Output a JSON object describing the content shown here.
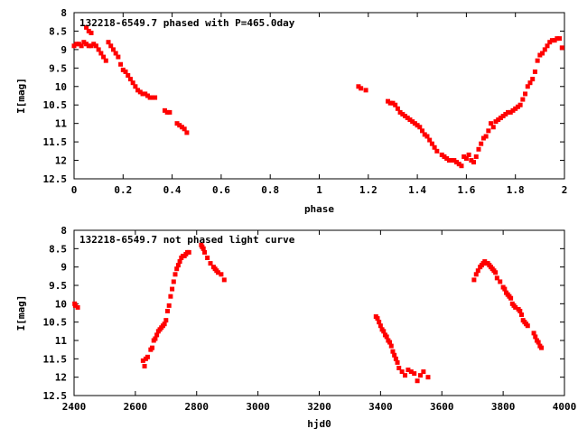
{
  "chart_data": [
    {
      "type": "scatter",
      "title": "132218-6549.7 phased with P=465.0day",
      "xlabel": "phase",
      "ylabel": "I[mag]",
      "xlim": [
        0,
        2
      ],
      "ylim": [
        12.5,
        8
      ],
      "y_inverted": true,
      "x_ticks": [
        "0",
        "0.2",
        "0.4",
        "0.6",
        "0.8",
        "1",
        "1.2",
        "1.4",
        "1.6",
        "1.8",
        "2"
      ],
      "x_tick_values": [
        0,
        0.2,
        0.4,
        0.6,
        0.8,
        1.0,
        1.2,
        1.4,
        1.6,
        1.8,
        2.0
      ],
      "y_ticks": [
        "8",
        "8.5",
        "9",
        "9.5",
        "10",
        "10.5",
        "11",
        "11.5",
        "12",
        "12.5"
      ],
      "y_tick_values": [
        8,
        8.5,
        9,
        9.5,
        10,
        10.5,
        11,
        11.5,
        12,
        12.5
      ],
      "grid": false,
      "marker_color": "#ff0000",
      "series": [
        {
          "x": [
            0.0,
            0.01,
            0.02,
            0.03,
            0.04,
            0.05,
            0.06,
            0.07,
            0.08,
            0.09,
            0.1,
            0.11,
            0.12,
            0.13,
            0.05,
            0.06,
            0.07,
            0.14,
            0.15,
            0.16,
            0.17,
            0.18,
            0.19,
            0.2,
            0.21,
            0.22,
            0.23,
            0.24,
            0.25,
            0.26,
            0.27,
            0.28,
            0.29,
            0.3,
            0.31,
            0.32,
            0.33,
            0.37,
            0.38,
            0.39,
            0.42,
            0.43,
            0.44,
            0.45,
            0.46,
            1.16,
            1.17,
            1.19,
            1.28,
            1.29,
            1.3,
            1.31,
            1.32,
            1.33,
            1.34,
            1.35,
            1.36,
            1.37,
            1.38,
            1.39,
            1.4,
            1.41,
            1.42,
            1.43,
            1.44,
            1.45,
            1.46,
            1.47,
            1.48,
            1.5,
            1.51,
            1.52,
            1.53,
            1.54,
            1.55,
            1.56,
            1.57,
            1.58,
            1.59,
            1.6,
            1.61,
            1.62,
            1.63,
            1.64,
            1.65,
            1.66,
            1.67,
            1.68,
            1.69,
            1.7,
            1.71,
            1.72,
            1.73,
            1.74,
            1.75,
            1.76,
            1.77,
            1.78,
            1.79,
            1.8,
            1.81,
            1.82,
            1.83,
            1.84,
            1.85,
            1.86,
            1.87,
            1.88,
            1.89,
            1.9,
            1.91,
            1.92,
            1.93,
            1.94,
            1.95,
            1.96,
            1.97,
            1.98,
            1.99
          ],
          "y": [
            8.9,
            8.85,
            8.85,
            8.9,
            8.8,
            8.85,
            8.9,
            8.9,
            8.85,
            8.9,
            9.0,
            9.1,
            9.2,
            9.3,
            8.4,
            8.5,
            8.55,
            8.8,
            8.9,
            9.0,
            9.1,
            9.2,
            9.4,
            9.55,
            9.6,
            9.7,
            9.8,
            9.9,
            10.0,
            10.1,
            10.15,
            10.2,
            10.2,
            10.25,
            10.3,
            10.3,
            10.3,
            10.65,
            10.7,
            10.7,
            11.0,
            11.05,
            11.1,
            11.15,
            11.25,
            10.0,
            10.05,
            10.1,
            10.4,
            10.45,
            10.45,
            10.5,
            10.6,
            10.7,
            10.75,
            10.8,
            10.85,
            10.9,
            10.95,
            11.0,
            11.05,
            11.1,
            11.2,
            11.3,
            11.35,
            11.45,
            11.55,
            11.65,
            11.75,
            11.85,
            11.9,
            11.95,
            12.0,
            12.0,
            12.0,
            12.05,
            12.1,
            12.15,
            11.9,
            11.95,
            11.85,
            12.0,
            12.05,
            11.9,
            11.7,
            11.55,
            11.4,
            11.35,
            11.2,
            11.0,
            11.1,
            10.95,
            10.9,
            10.85,
            10.8,
            10.75,
            10.7,
            10.7,
            10.65,
            10.6,
            10.55,
            10.5,
            10.35,
            10.2,
            10.0,
            9.9,
            9.8,
            9.6,
            9.3,
            9.15,
            9.1,
            9.0,
            8.9,
            8.8,
            8.75,
            8.75,
            8.7,
            8.7,
            8.95
          ]
        }
      ]
    },
    {
      "type": "scatter",
      "title": "132218-6549.7 not phased light curve",
      "xlabel": "hjd0",
      "ylabel": "I[mag]",
      "xlim": [
        2400,
        4000
      ],
      "ylim": [
        12.5,
        8
      ],
      "y_inverted": true,
      "x_ticks": [
        "2400",
        "2600",
        "2800",
        "3000",
        "3200",
        "3400",
        "3600",
        "3800",
        "4000"
      ],
      "x_tick_values": [
        2400,
        2600,
        2800,
        3000,
        3200,
        3400,
        3600,
        3800,
        4000
      ],
      "y_ticks": [
        "8",
        "8.5",
        "9",
        "9.5",
        "10",
        "10.5",
        "11",
        "11.5",
        "12",
        "12.5"
      ],
      "y_tick_values": [
        8,
        8.5,
        9,
        9.5,
        10,
        10.5,
        11,
        11.5,
        12,
        12.5
      ],
      "grid": false,
      "marker_color": "#ff0000",
      "series": [
        {
          "x": [
            2402,
            2404,
            2412,
            2625,
            2630,
            2634,
            2640,
            2650,
            2655,
            2660,
            2665,
            2670,
            2675,
            2680,
            2685,
            2690,
            2695,
            2700,
            2705,
            2710,
            2715,
            2720,
            2725,
            2730,
            2735,
            2740,
            2745,
            2750,
            2755,
            2760,
            2765,
            2770,
            2775,
            2815,
            2818,
            2822,
            2826,
            2835,
            2845,
            2855,
            2860,
            2865,
            2870,
            2880,
            2890,
            3385,
            3390,
            3395,
            3400,
            3405,
            3410,
            3415,
            3420,
            3425,
            3430,
            3435,
            3440,
            3445,
            3450,
            3455,
            3460,
            3470,
            3480,
            3490,
            3500,
            3510,
            3520,
            3530,
            3540,
            3555,
            3705,
            3712,
            3718,
            3725,
            3730,
            3735,
            3740,
            3745,
            3750,
            3755,
            3760,
            3765,
            3770,
            3775,
            3780,
            3790,
            3800,
            3805,
            3810,
            3815,
            3820,
            3825,
            3830,
            3835,
            3840,
            3850,
            3855,
            3860,
            3865,
            3870,
            3875,
            3880,
            3900,
            3905,
            3910,
            3915,
            3920,
            3925
          ],
          "y": [
            10.0,
            10.05,
            10.1,
            11.55,
            11.7,
            11.5,
            11.45,
            11.25,
            11.2,
            11.0,
            10.95,
            10.85,
            10.75,
            10.7,
            10.65,
            10.6,
            10.55,
            10.45,
            10.2,
            10.05,
            9.8,
            9.6,
            9.4,
            9.2,
            9.05,
            8.95,
            8.85,
            8.75,
            8.7,
            8.7,
            8.65,
            8.6,
            8.6,
            8.4,
            8.45,
            8.5,
            8.6,
            8.75,
            8.9,
            9.0,
            9.05,
            9.1,
            9.15,
            9.2,
            9.35,
            10.35,
            10.4,
            10.5,
            10.6,
            10.7,
            10.75,
            10.85,
            10.9,
            11.0,
            11.05,
            11.15,
            11.3,
            11.4,
            11.5,
            11.6,
            11.75,
            11.85,
            11.95,
            11.8,
            11.85,
            11.9,
            12.1,
            11.95,
            11.85,
            12.0,
            9.35,
            9.2,
            9.1,
            9.0,
            8.95,
            8.9,
            8.85,
            8.9,
            8.9,
            8.95,
            9.0,
            9.05,
            9.1,
            9.15,
            9.3,
            9.4,
            9.55,
            9.6,
            9.7,
            9.75,
            9.8,
            9.85,
            10.0,
            10.05,
            10.1,
            10.15,
            10.2,
            10.3,
            10.45,
            10.5,
            10.55,
            10.6,
            10.8,
            10.9,
            11.0,
            11.05,
            11.15,
            11.2
          ]
        }
      ]
    }
  ]
}
